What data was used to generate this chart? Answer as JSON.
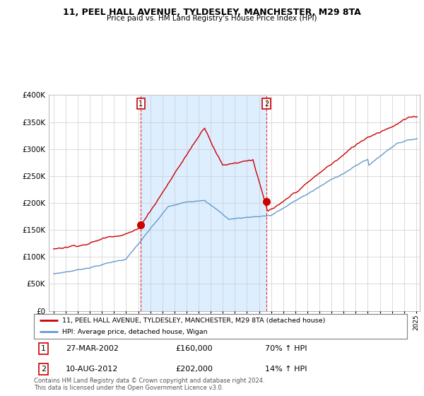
{
  "title": "11, PEEL HALL AVENUE, TYLDESLEY, MANCHESTER, M29 8TA",
  "subtitle": "Price paid vs. HM Land Registry's House Price Index (HPI)",
  "legend_line1": "11, PEEL HALL AVENUE, TYLDESLEY, MANCHESTER, M29 8TA (detached house)",
  "legend_line2": "HPI: Average price, detached house, Wigan",
  "annotation1_label": "1",
  "annotation1_date": "27-MAR-2002",
  "annotation1_price": "£160,000",
  "annotation1_hpi": "70% ↑ HPI",
  "annotation2_label": "2",
  "annotation2_date": "10-AUG-2012",
  "annotation2_price": "£202,000",
  "annotation2_hpi": "14% ↑ HPI",
  "footer": "Contains HM Land Registry data © Crown copyright and database right 2024.\nThis data is licensed under the Open Government Licence v3.0.",
  "red_color": "#cc0000",
  "blue_color": "#6699cc",
  "shade_color": "#ddeeff",
  "marker1_x": 2002.23,
  "marker1_y": 160000,
  "marker2_x": 2012.61,
  "marker2_y": 202000,
  "vline1_x": 2002.23,
  "vline2_x": 2012.61,
  "ylim": [
    0,
    400000
  ],
  "xlim_start": 1994.6,
  "xlim_end": 2025.3,
  "background_color": "#ffffff",
  "grid_color": "#cccccc"
}
